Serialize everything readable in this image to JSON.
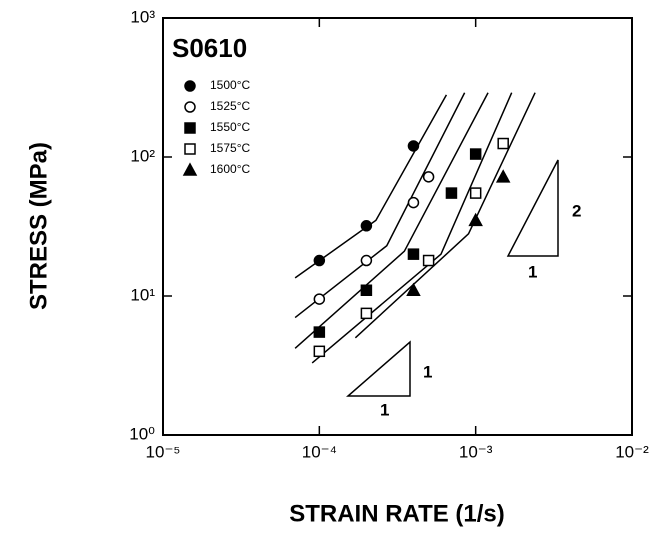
{
  "chart_data": {
    "type": "scatter",
    "title": "S0610",
    "x_label": "STRAIN RATE (1/s)",
    "y_label": "STRESS (MPa)",
    "log_x": true,
    "log_y": true,
    "xlim": [
      1e-05,
      0.01
    ],
    "ylim": [
      1,
      1000
    ],
    "xticks": [
      {
        "value": 1e-05,
        "label": "10⁻⁵"
      },
      {
        "value": 0.0001,
        "label": "10⁻⁴"
      },
      {
        "value": 0.001,
        "label": "10⁻³"
      },
      {
        "value": 0.01,
        "label": "10⁻²"
      }
    ],
    "yticks": [
      {
        "value": 1,
        "label": "10⁰"
      },
      {
        "value": 10,
        "label": "10¹"
      },
      {
        "value": 100,
        "label": "10²"
      },
      {
        "value": 1000,
        "label": "10³"
      }
    ],
    "series": [
      {
        "name": "1500°C",
        "color": "#000000",
        "marker": "circle",
        "filled": true,
        "x": [
          0.0001,
          0.0002,
          0.0004
        ],
        "values": [
          18,
          32,
          120
        ]
      },
      {
        "name": "1525°C",
        "color": "#000000",
        "marker": "circle",
        "filled": false,
        "x": [
          0.0001,
          0.0002,
          0.0004,
          0.0005
        ],
        "values": [
          9.5,
          18,
          47,
          72
        ]
      },
      {
        "name": "1550°C",
        "color": "#000000",
        "marker": "square",
        "filled": true,
        "x": [
          0.0001,
          0.0002,
          0.0004,
          0.0007,
          0.001
        ],
        "values": [
          5.5,
          11,
          20,
          55,
          105
        ]
      },
      {
        "name": "1575°C",
        "color": "#000000",
        "marker": "square",
        "filled": false,
        "x": [
          0.0001,
          0.0002,
          0.0005,
          0.001,
          0.0015
        ],
        "values": [
          4,
          7.5,
          18,
          55,
          125
        ]
      },
      {
        "name": "1600°C",
        "color": "#000000",
        "marker": "triangle",
        "filled": true,
        "x": [
          0.0004,
          0.001,
          0.0015
        ],
        "values": [
          11,
          35,
          72
        ]
      }
    ],
    "fits": [
      {
        "x": [
          7e-05,
          0.00023,
          0.00065
        ],
        "values": [
          13.5,
          35,
          280
        ]
      },
      {
        "x": [
          7e-05,
          0.00027,
          0.00085
        ],
        "values": [
          7,
          23,
          290
        ]
      },
      {
        "x": [
          7e-05,
          0.00035,
          0.0012
        ],
        "values": [
          4.2,
          21,
          290
        ]
      },
      {
        "x": [
          9e-05,
          0.0006,
          0.0017
        ],
        "values": [
          3.3,
          20,
          290
        ]
      },
      {
        "x": [
          0.00017,
          0.0009,
          0.0024
        ],
        "values": [
          5,
          28,
          290
        ]
      }
    ],
    "annotations": [
      "1",
      "1",
      "2",
      "1"
    ]
  }
}
